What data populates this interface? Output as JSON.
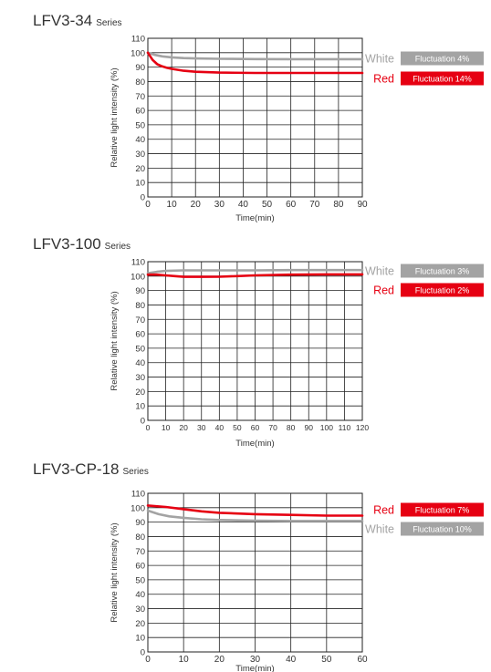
{
  "colors": {
    "white_series": "#a3a3a3",
    "red_series": "#e60012",
    "grid": "#222222",
    "badge_text": "#ffffff"
  },
  "sections": [
    {
      "name": "LFV3-34",
      "suffix": "Series"
    },
    {
      "name": "LFV3-100",
      "suffix": "Series"
    },
    {
      "name": "LFV3-CP-18",
      "suffix": "Series"
    }
  ],
  "chart_data": [
    {
      "type": "line",
      "xlabel": "Time(min)",
      "ylabel": "Relative light intensity (%)",
      "xlim": [
        0,
        90
      ],
      "ylim": [
        0,
        110
      ],
      "xticks": [
        0,
        10,
        20,
        30,
        40,
        50,
        60,
        70,
        80,
        90
      ],
      "yticks": [
        0,
        10,
        20,
        30,
        40,
        50,
        60,
        70,
        80,
        90,
        100,
        110
      ],
      "grid": true,
      "legend_position": "right",
      "series": [
        {
          "name": "White",
          "color": "#a3a3a3",
          "badge": "Fluctuation 4%",
          "x": [
            0,
            3,
            6,
            10,
            15,
            20,
            30,
            45,
            60,
            75,
            90
          ],
          "y": [
            100,
            98.5,
            97.5,
            96.8,
            96.3,
            96,
            95.8,
            95.6,
            95.5,
            95.5,
            95.5
          ]
        },
        {
          "name": "Red",
          "color": "#e60012",
          "badge": "Fluctuation 14%",
          "x": [
            0,
            2,
            4,
            6,
            8,
            10,
            15,
            20,
            30,
            45,
            60,
            75,
            90
          ],
          "y": [
            100,
            95,
            92,
            90.5,
            89.5,
            88.8,
            87.5,
            86.8,
            86.2,
            86,
            86,
            86,
            86
          ]
        }
      ]
    },
    {
      "type": "line",
      "xlabel": "Time(min)",
      "ylabel": "Relative light intensity (%)",
      "xlim": [
        0,
        120
      ],
      "ylim": [
        0,
        110
      ],
      "xticks": [
        0,
        10,
        20,
        30,
        40,
        50,
        60,
        70,
        80,
        90,
        100,
        110,
        120
      ],
      "yticks": [
        0,
        10,
        20,
        30,
        40,
        50,
        60,
        70,
        80,
        90,
        100,
        110
      ],
      "grid": true,
      "legend_position": "right",
      "series": [
        {
          "name": "White",
          "color": "#a3a3a3",
          "badge": "Fluctuation 3%",
          "x": [
            0,
            5,
            10,
            20,
            40,
            60,
            80,
            100,
            120
          ],
          "y": [
            102,
            103,
            103.6,
            104,
            104,
            104,
            104.2,
            104.2,
            104.2
          ]
        },
        {
          "name": "Red",
          "color": "#e60012",
          "badge": "Fluctuation 2%",
          "x": [
            0,
            5,
            10,
            15,
            20,
            30,
            40,
            50,
            60,
            80,
            100,
            120
          ],
          "y": [
            101,
            101,
            100.5,
            100,
            99.5,
            99.5,
            99.6,
            100,
            100.5,
            101,
            101.2,
            101.2
          ]
        }
      ]
    },
    {
      "type": "line",
      "xlabel": "Time(min)",
      "ylabel": "Relative light intensity (%)",
      "xlim": [
        0,
        60
      ],
      "ylim": [
        0,
        110
      ],
      "xticks": [
        0,
        10,
        20,
        30,
        40,
        50,
        60
      ],
      "yticks": [
        0,
        10,
        20,
        30,
        40,
        50,
        60,
        70,
        80,
        90,
        100,
        110
      ],
      "grid": true,
      "legend_position": "right",
      "series": [
        {
          "name": "Red",
          "color": "#e60012",
          "badge": "Fluctuation 7%",
          "x": [
            0,
            5,
            10,
            15,
            20,
            30,
            40,
            50,
            60
          ],
          "y": [
            101.5,
            100.5,
            99,
            97.5,
            96.5,
            95.5,
            95,
            94.5,
            94.5
          ]
        },
        {
          "name": "White",
          "color": "#a3a3a3",
          "badge": "Fluctuation 10%",
          "x": [
            0,
            3,
            6,
            10,
            15,
            20,
            30,
            40,
            50,
            60
          ],
          "y": [
            98,
            95.5,
            94,
            93,
            92,
            91.5,
            91,
            90.8,
            90.8,
            90.8
          ]
        }
      ]
    }
  ]
}
